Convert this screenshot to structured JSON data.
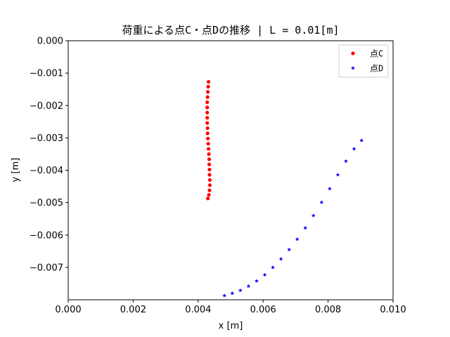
{
  "chart_data": {
    "type": "scatter",
    "title": "荷重による点C・点Dの推移 | L = 0.01[m]",
    "xlabel": "x [m]",
    "ylabel": "y [m]",
    "xlim": [
      0.0,
      0.01
    ],
    "ylim": [
      -0.008,
      0.0
    ],
    "xticks": [
      "0.000",
      "0.002",
      "0.004",
      "0.006",
      "0.008",
      "0.010"
    ],
    "xtick_values": [
      0.0,
      0.002,
      0.004,
      0.006,
      0.008,
      0.01
    ],
    "yticks": [
      "0.000",
      "−0.001",
      "−0.002",
      "−0.003",
      "−0.004",
      "−0.005",
      "−0.006",
      "−0.007"
    ],
    "ytick_values": [
      0.0,
      -0.001,
      -0.002,
      -0.003,
      -0.004,
      -0.005,
      -0.006,
      -0.007
    ],
    "grid": false,
    "legend_position": "top-right",
    "series": [
      {
        "name": "点C",
        "color": "#ff0000",
        "marker": "circle",
        "points": [
          [
            0.00432,
            -0.00127
          ],
          [
            0.00431,
            -0.00142
          ],
          [
            0.0043,
            -0.00158
          ],
          [
            0.00429,
            -0.00174
          ],
          [
            0.00428,
            -0.0019
          ],
          [
            0.00428,
            -0.00206
          ],
          [
            0.00428,
            -0.00222
          ],
          [
            0.00428,
            -0.00238
          ],
          [
            0.00428,
            -0.00254
          ],
          [
            0.00429,
            -0.0027
          ],
          [
            0.00429,
            -0.00286
          ],
          [
            0.0043,
            -0.00302
          ],
          [
            0.00431,
            -0.00318
          ],
          [
            0.00432,
            -0.00334
          ],
          [
            0.00433,
            -0.0035
          ],
          [
            0.00434,
            -0.00366
          ],
          [
            0.00434,
            -0.00382
          ],
          [
            0.00435,
            -0.00398
          ],
          [
            0.00435,
            -0.00414
          ],
          [
            0.00436,
            -0.0043
          ],
          [
            0.00436,
            -0.00446
          ],
          [
            0.00435,
            -0.00462
          ],
          [
            0.00433,
            -0.00476
          ],
          [
            0.0043,
            -0.00487
          ]
        ]
      },
      {
        "name": "点D",
        "color": "#0000ff",
        "marker": "star",
        "points": [
          [
            0.00481,
            -0.00787
          ],
          [
            0.00505,
            -0.0078
          ],
          [
            0.0053,
            -0.00771
          ],
          [
            0.00555,
            -0.00758
          ],
          [
            0.0058,
            -0.00742
          ],
          [
            0.00605,
            -0.00723
          ],
          [
            0.0063,
            -0.007
          ],
          [
            0.00655,
            -0.00674
          ],
          [
            0.0068,
            -0.00645
          ],
          [
            0.00705,
            -0.00613
          ],
          [
            0.0073,
            -0.00578
          ],
          [
            0.00755,
            -0.0054
          ],
          [
            0.0078,
            -0.00499
          ],
          [
            0.00805,
            -0.00457
          ],
          [
            0.0083,
            -0.00414
          ],
          [
            0.00855,
            -0.00372
          ],
          [
            0.0088,
            -0.00334
          ],
          [
            0.00903,
            -0.00308
          ]
        ]
      }
    ]
  }
}
